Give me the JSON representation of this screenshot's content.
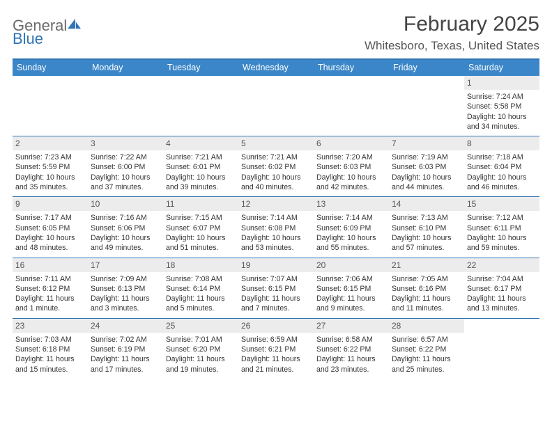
{
  "brand": {
    "word1": "General",
    "word2": "Blue"
  },
  "colors": {
    "accent": "#3a86c8",
    "divider": "#2f74b5",
    "daynum_bg": "#ececec",
    "text": "#333333",
    "logo_gray": "#6a6a6a",
    "logo_blue": "#2f74b5"
  },
  "header": {
    "title": "February 2025",
    "subtitle": "Whitesboro, Texas, United States"
  },
  "days_of_week": [
    "Sunday",
    "Monday",
    "Tuesday",
    "Wednesday",
    "Thursday",
    "Friday",
    "Saturday"
  ],
  "weeks": [
    [
      null,
      null,
      null,
      null,
      null,
      null,
      {
        "n": "1",
        "sunrise": "Sunrise: 7:24 AM",
        "sunset": "Sunset: 5:58 PM",
        "daylight1": "Daylight: 10 hours",
        "daylight2": "and 34 minutes."
      }
    ],
    [
      {
        "n": "2",
        "sunrise": "Sunrise: 7:23 AM",
        "sunset": "Sunset: 5:59 PM",
        "daylight1": "Daylight: 10 hours",
        "daylight2": "and 35 minutes."
      },
      {
        "n": "3",
        "sunrise": "Sunrise: 7:22 AM",
        "sunset": "Sunset: 6:00 PM",
        "daylight1": "Daylight: 10 hours",
        "daylight2": "and 37 minutes."
      },
      {
        "n": "4",
        "sunrise": "Sunrise: 7:21 AM",
        "sunset": "Sunset: 6:01 PM",
        "daylight1": "Daylight: 10 hours",
        "daylight2": "and 39 minutes."
      },
      {
        "n": "5",
        "sunrise": "Sunrise: 7:21 AM",
        "sunset": "Sunset: 6:02 PM",
        "daylight1": "Daylight: 10 hours",
        "daylight2": "and 40 minutes."
      },
      {
        "n": "6",
        "sunrise": "Sunrise: 7:20 AM",
        "sunset": "Sunset: 6:03 PM",
        "daylight1": "Daylight: 10 hours",
        "daylight2": "and 42 minutes."
      },
      {
        "n": "7",
        "sunrise": "Sunrise: 7:19 AM",
        "sunset": "Sunset: 6:03 PM",
        "daylight1": "Daylight: 10 hours",
        "daylight2": "and 44 minutes."
      },
      {
        "n": "8",
        "sunrise": "Sunrise: 7:18 AM",
        "sunset": "Sunset: 6:04 PM",
        "daylight1": "Daylight: 10 hours",
        "daylight2": "and 46 minutes."
      }
    ],
    [
      {
        "n": "9",
        "sunrise": "Sunrise: 7:17 AM",
        "sunset": "Sunset: 6:05 PM",
        "daylight1": "Daylight: 10 hours",
        "daylight2": "and 48 minutes."
      },
      {
        "n": "10",
        "sunrise": "Sunrise: 7:16 AM",
        "sunset": "Sunset: 6:06 PM",
        "daylight1": "Daylight: 10 hours",
        "daylight2": "and 49 minutes."
      },
      {
        "n": "11",
        "sunrise": "Sunrise: 7:15 AM",
        "sunset": "Sunset: 6:07 PM",
        "daylight1": "Daylight: 10 hours",
        "daylight2": "and 51 minutes."
      },
      {
        "n": "12",
        "sunrise": "Sunrise: 7:14 AM",
        "sunset": "Sunset: 6:08 PM",
        "daylight1": "Daylight: 10 hours",
        "daylight2": "and 53 minutes."
      },
      {
        "n": "13",
        "sunrise": "Sunrise: 7:14 AM",
        "sunset": "Sunset: 6:09 PM",
        "daylight1": "Daylight: 10 hours",
        "daylight2": "and 55 minutes."
      },
      {
        "n": "14",
        "sunrise": "Sunrise: 7:13 AM",
        "sunset": "Sunset: 6:10 PM",
        "daylight1": "Daylight: 10 hours",
        "daylight2": "and 57 minutes."
      },
      {
        "n": "15",
        "sunrise": "Sunrise: 7:12 AM",
        "sunset": "Sunset: 6:11 PM",
        "daylight1": "Daylight: 10 hours",
        "daylight2": "and 59 minutes."
      }
    ],
    [
      {
        "n": "16",
        "sunrise": "Sunrise: 7:11 AM",
        "sunset": "Sunset: 6:12 PM",
        "daylight1": "Daylight: 11 hours",
        "daylight2": "and 1 minute."
      },
      {
        "n": "17",
        "sunrise": "Sunrise: 7:09 AM",
        "sunset": "Sunset: 6:13 PM",
        "daylight1": "Daylight: 11 hours",
        "daylight2": "and 3 minutes."
      },
      {
        "n": "18",
        "sunrise": "Sunrise: 7:08 AM",
        "sunset": "Sunset: 6:14 PM",
        "daylight1": "Daylight: 11 hours",
        "daylight2": "and 5 minutes."
      },
      {
        "n": "19",
        "sunrise": "Sunrise: 7:07 AM",
        "sunset": "Sunset: 6:15 PM",
        "daylight1": "Daylight: 11 hours",
        "daylight2": "and 7 minutes."
      },
      {
        "n": "20",
        "sunrise": "Sunrise: 7:06 AM",
        "sunset": "Sunset: 6:15 PM",
        "daylight1": "Daylight: 11 hours",
        "daylight2": "and 9 minutes."
      },
      {
        "n": "21",
        "sunrise": "Sunrise: 7:05 AM",
        "sunset": "Sunset: 6:16 PM",
        "daylight1": "Daylight: 11 hours",
        "daylight2": "and 11 minutes."
      },
      {
        "n": "22",
        "sunrise": "Sunrise: 7:04 AM",
        "sunset": "Sunset: 6:17 PM",
        "daylight1": "Daylight: 11 hours",
        "daylight2": "and 13 minutes."
      }
    ],
    [
      {
        "n": "23",
        "sunrise": "Sunrise: 7:03 AM",
        "sunset": "Sunset: 6:18 PM",
        "daylight1": "Daylight: 11 hours",
        "daylight2": "and 15 minutes."
      },
      {
        "n": "24",
        "sunrise": "Sunrise: 7:02 AM",
        "sunset": "Sunset: 6:19 PM",
        "daylight1": "Daylight: 11 hours",
        "daylight2": "and 17 minutes."
      },
      {
        "n": "25",
        "sunrise": "Sunrise: 7:01 AM",
        "sunset": "Sunset: 6:20 PM",
        "daylight1": "Daylight: 11 hours",
        "daylight2": "and 19 minutes."
      },
      {
        "n": "26",
        "sunrise": "Sunrise: 6:59 AM",
        "sunset": "Sunset: 6:21 PM",
        "daylight1": "Daylight: 11 hours",
        "daylight2": "and 21 minutes."
      },
      {
        "n": "27",
        "sunrise": "Sunrise: 6:58 AM",
        "sunset": "Sunset: 6:22 PM",
        "daylight1": "Daylight: 11 hours",
        "daylight2": "and 23 minutes."
      },
      {
        "n": "28",
        "sunrise": "Sunrise: 6:57 AM",
        "sunset": "Sunset: 6:22 PM",
        "daylight1": "Daylight: 11 hours",
        "daylight2": "and 25 minutes."
      },
      null
    ]
  ]
}
